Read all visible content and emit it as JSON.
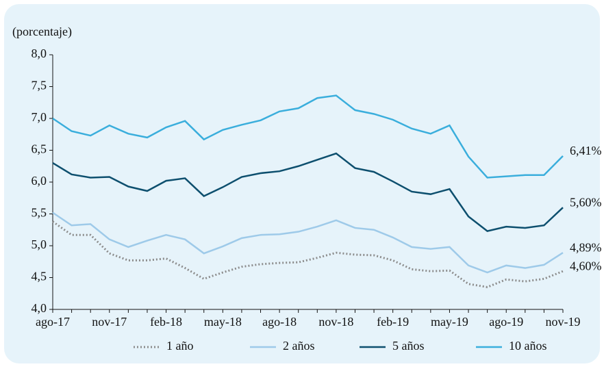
{
  "chart_data": {
    "type": "line",
    "ylabel": "(porcentaje)",
    "categories": [
      "ago-17",
      null,
      null,
      "nov-17",
      null,
      null,
      "feb-18",
      null,
      null,
      "may-18",
      null,
      null,
      "ago-18",
      null,
      null,
      "nov-18",
      null,
      null,
      "feb-19",
      null,
      null,
      "may-19",
      null,
      null,
      "ago-19",
      null,
      null,
      "nov-19"
    ],
    "ylim": [
      4.0,
      8.0
    ],
    "yticks": [
      {
        "value": 4.0,
        "label": "4,0"
      },
      {
        "value": 4.5,
        "label": "4,5"
      },
      {
        "value": 5.0,
        "label": "5,0"
      },
      {
        "value": 5.5,
        "label": "5,5"
      },
      {
        "value": 6.0,
        "label": "6,0"
      },
      {
        "value": 6.5,
        "label": "6,5"
      },
      {
        "value": 7.0,
        "label": "7,0"
      },
      {
        "value": 7.5,
        "label": "7,5"
      },
      {
        "value": 8.0,
        "label": "8,0"
      }
    ],
    "legend": "bottom",
    "series": [
      {
        "name": "1 año",
        "color": "#8c8c8c",
        "dash": "dotted",
        "values": [
          5.38,
          5.17,
          5.17,
          4.88,
          4.77,
          4.77,
          4.8,
          4.65,
          4.48,
          4.58,
          4.67,
          4.71,
          4.73,
          4.74,
          4.81,
          4.89,
          4.86,
          4.85,
          4.77,
          4.63,
          4.6,
          4.61,
          4.4,
          4.35,
          4.47,
          4.44,
          4.48,
          4.6
        ],
        "value_labels": [
          null,
          null,
          null,
          null,
          null,
          null,
          null,
          null,
          null,
          null,
          null,
          null,
          null,
          null,
          null,
          null,
          null,
          null,
          null,
          null,
          null,
          null,
          null,
          null,
          null,
          null,
          null,
          "4,60%"
        ]
      },
      {
        "name": "2 años",
        "color": "#9ecae9",
        "dash": "solid",
        "values": [
          5.52,
          5.32,
          5.34,
          5.1,
          4.98,
          5.08,
          5.17,
          5.1,
          4.88,
          4.99,
          5.12,
          5.17,
          5.18,
          5.22,
          5.3,
          5.4,
          5.28,
          5.25,
          5.13,
          4.98,
          4.95,
          4.98,
          4.69,
          4.58,
          4.69,
          4.65,
          4.7,
          4.89
        ],
        "value_labels": [
          null,
          null,
          null,
          null,
          null,
          null,
          null,
          null,
          null,
          null,
          null,
          null,
          null,
          null,
          null,
          null,
          null,
          null,
          null,
          null,
          null,
          null,
          null,
          null,
          null,
          null,
          null,
          "4,89%"
        ]
      },
      {
        "name": "5 años",
        "color": "#0d4f6e",
        "dash": "solid",
        "values": [
          6.3,
          6.12,
          6.07,
          6.08,
          5.93,
          5.86,
          6.02,
          6.06,
          5.78,
          5.92,
          6.08,
          6.14,
          6.17,
          6.25,
          6.35,
          6.45,
          6.22,
          6.16,
          6.01,
          5.85,
          5.81,
          5.89,
          5.46,
          5.23,
          5.3,
          5.28,
          5.32,
          5.6
        ],
        "value_labels": [
          null,
          null,
          null,
          null,
          null,
          null,
          null,
          null,
          null,
          null,
          null,
          null,
          null,
          null,
          null,
          null,
          null,
          null,
          null,
          null,
          null,
          null,
          null,
          null,
          null,
          null,
          null,
          "5,60%"
        ]
      },
      {
        "name": "10 años",
        "color": "#3aaedc",
        "dash": "solid",
        "values": [
          7.0,
          6.8,
          6.73,
          6.89,
          6.76,
          6.7,
          6.86,
          6.96,
          6.67,
          6.82,
          6.9,
          6.97,
          7.11,
          7.16,
          7.32,
          7.36,
          7.13,
          7.07,
          6.98,
          6.84,
          6.76,
          6.89,
          6.4,
          6.07,
          6.09,
          6.11,
          6.11,
          6.41
        ],
        "value_labels": [
          null,
          null,
          null,
          null,
          null,
          null,
          null,
          null,
          null,
          null,
          null,
          null,
          null,
          null,
          null,
          null,
          null,
          null,
          null,
          null,
          null,
          null,
          null,
          null,
          null,
          null,
          null,
          "6,41%"
        ]
      }
    ]
  }
}
